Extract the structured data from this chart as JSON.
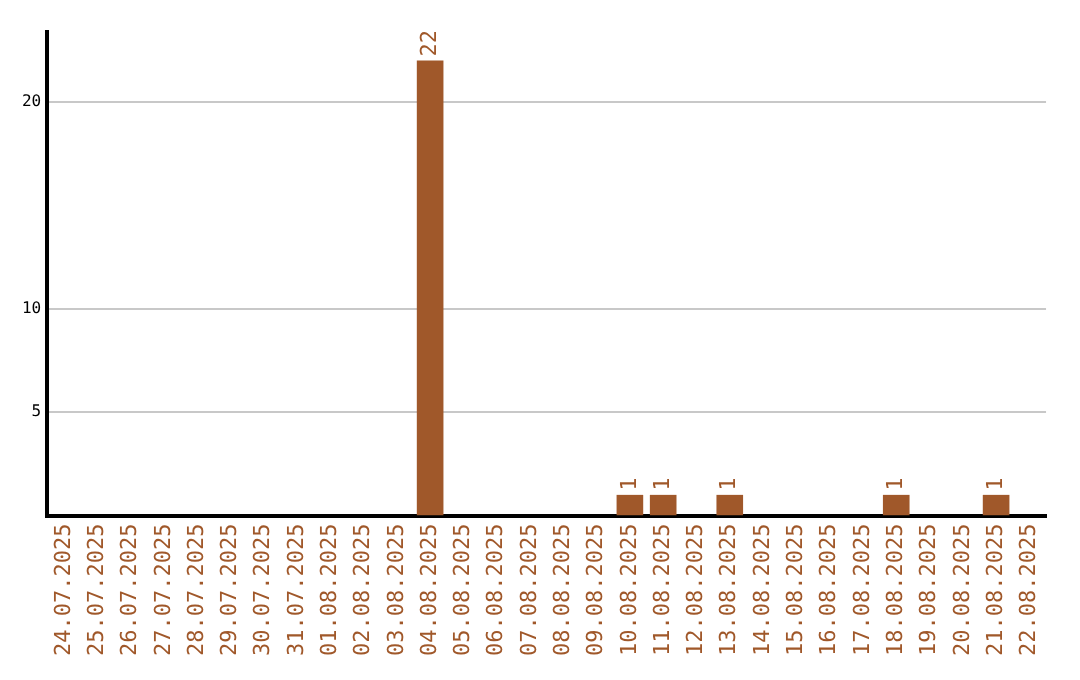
{
  "chart_data": {
    "type": "bar",
    "categories": [
      "24.07.2025",
      "25.07.2025",
      "26.07.2025",
      "27.07.2025",
      "28.07.2025",
      "29.07.2025",
      "30.07.2025",
      "31.07.2025",
      "01.08.2025",
      "02.08.2025",
      "03.08.2025",
      "04.08.2025",
      "05.08.2025",
      "06.08.2025",
      "07.08.2025",
      "08.08.2025",
      "09.08.2025",
      "10.08.2025",
      "11.08.2025",
      "12.08.2025",
      "13.08.2025",
      "14.08.2025",
      "15.08.2025",
      "16.08.2025",
      "17.08.2025",
      "18.08.2025",
      "19.08.2025",
      "20.08.2025",
      "21.08.2025",
      "22.08.2025"
    ],
    "values": [
      0,
      0,
      0,
      0,
      0,
      0,
      0,
      0,
      0,
      0,
      0,
      22,
      0,
      0,
      0,
      0,
      0,
      1,
      1,
      0,
      1,
      0,
      0,
      0,
      0,
      1,
      0,
      0,
      1,
      0
    ],
    "value_labels": [
      null,
      null,
      null,
      null,
      null,
      null,
      null,
      null,
      null,
      null,
      null,
      "22",
      null,
      null,
      null,
      null,
      null,
      "1",
      "1",
      null,
      "1",
      null,
      null,
      null,
      null,
      "1",
      null,
      null,
      "1",
      null
    ],
    "color": "#a0582a",
    "ylim": [
      0,
      23.4
    ],
    "yticks": [
      5,
      10,
      20
    ],
    "grid": "y"
  }
}
